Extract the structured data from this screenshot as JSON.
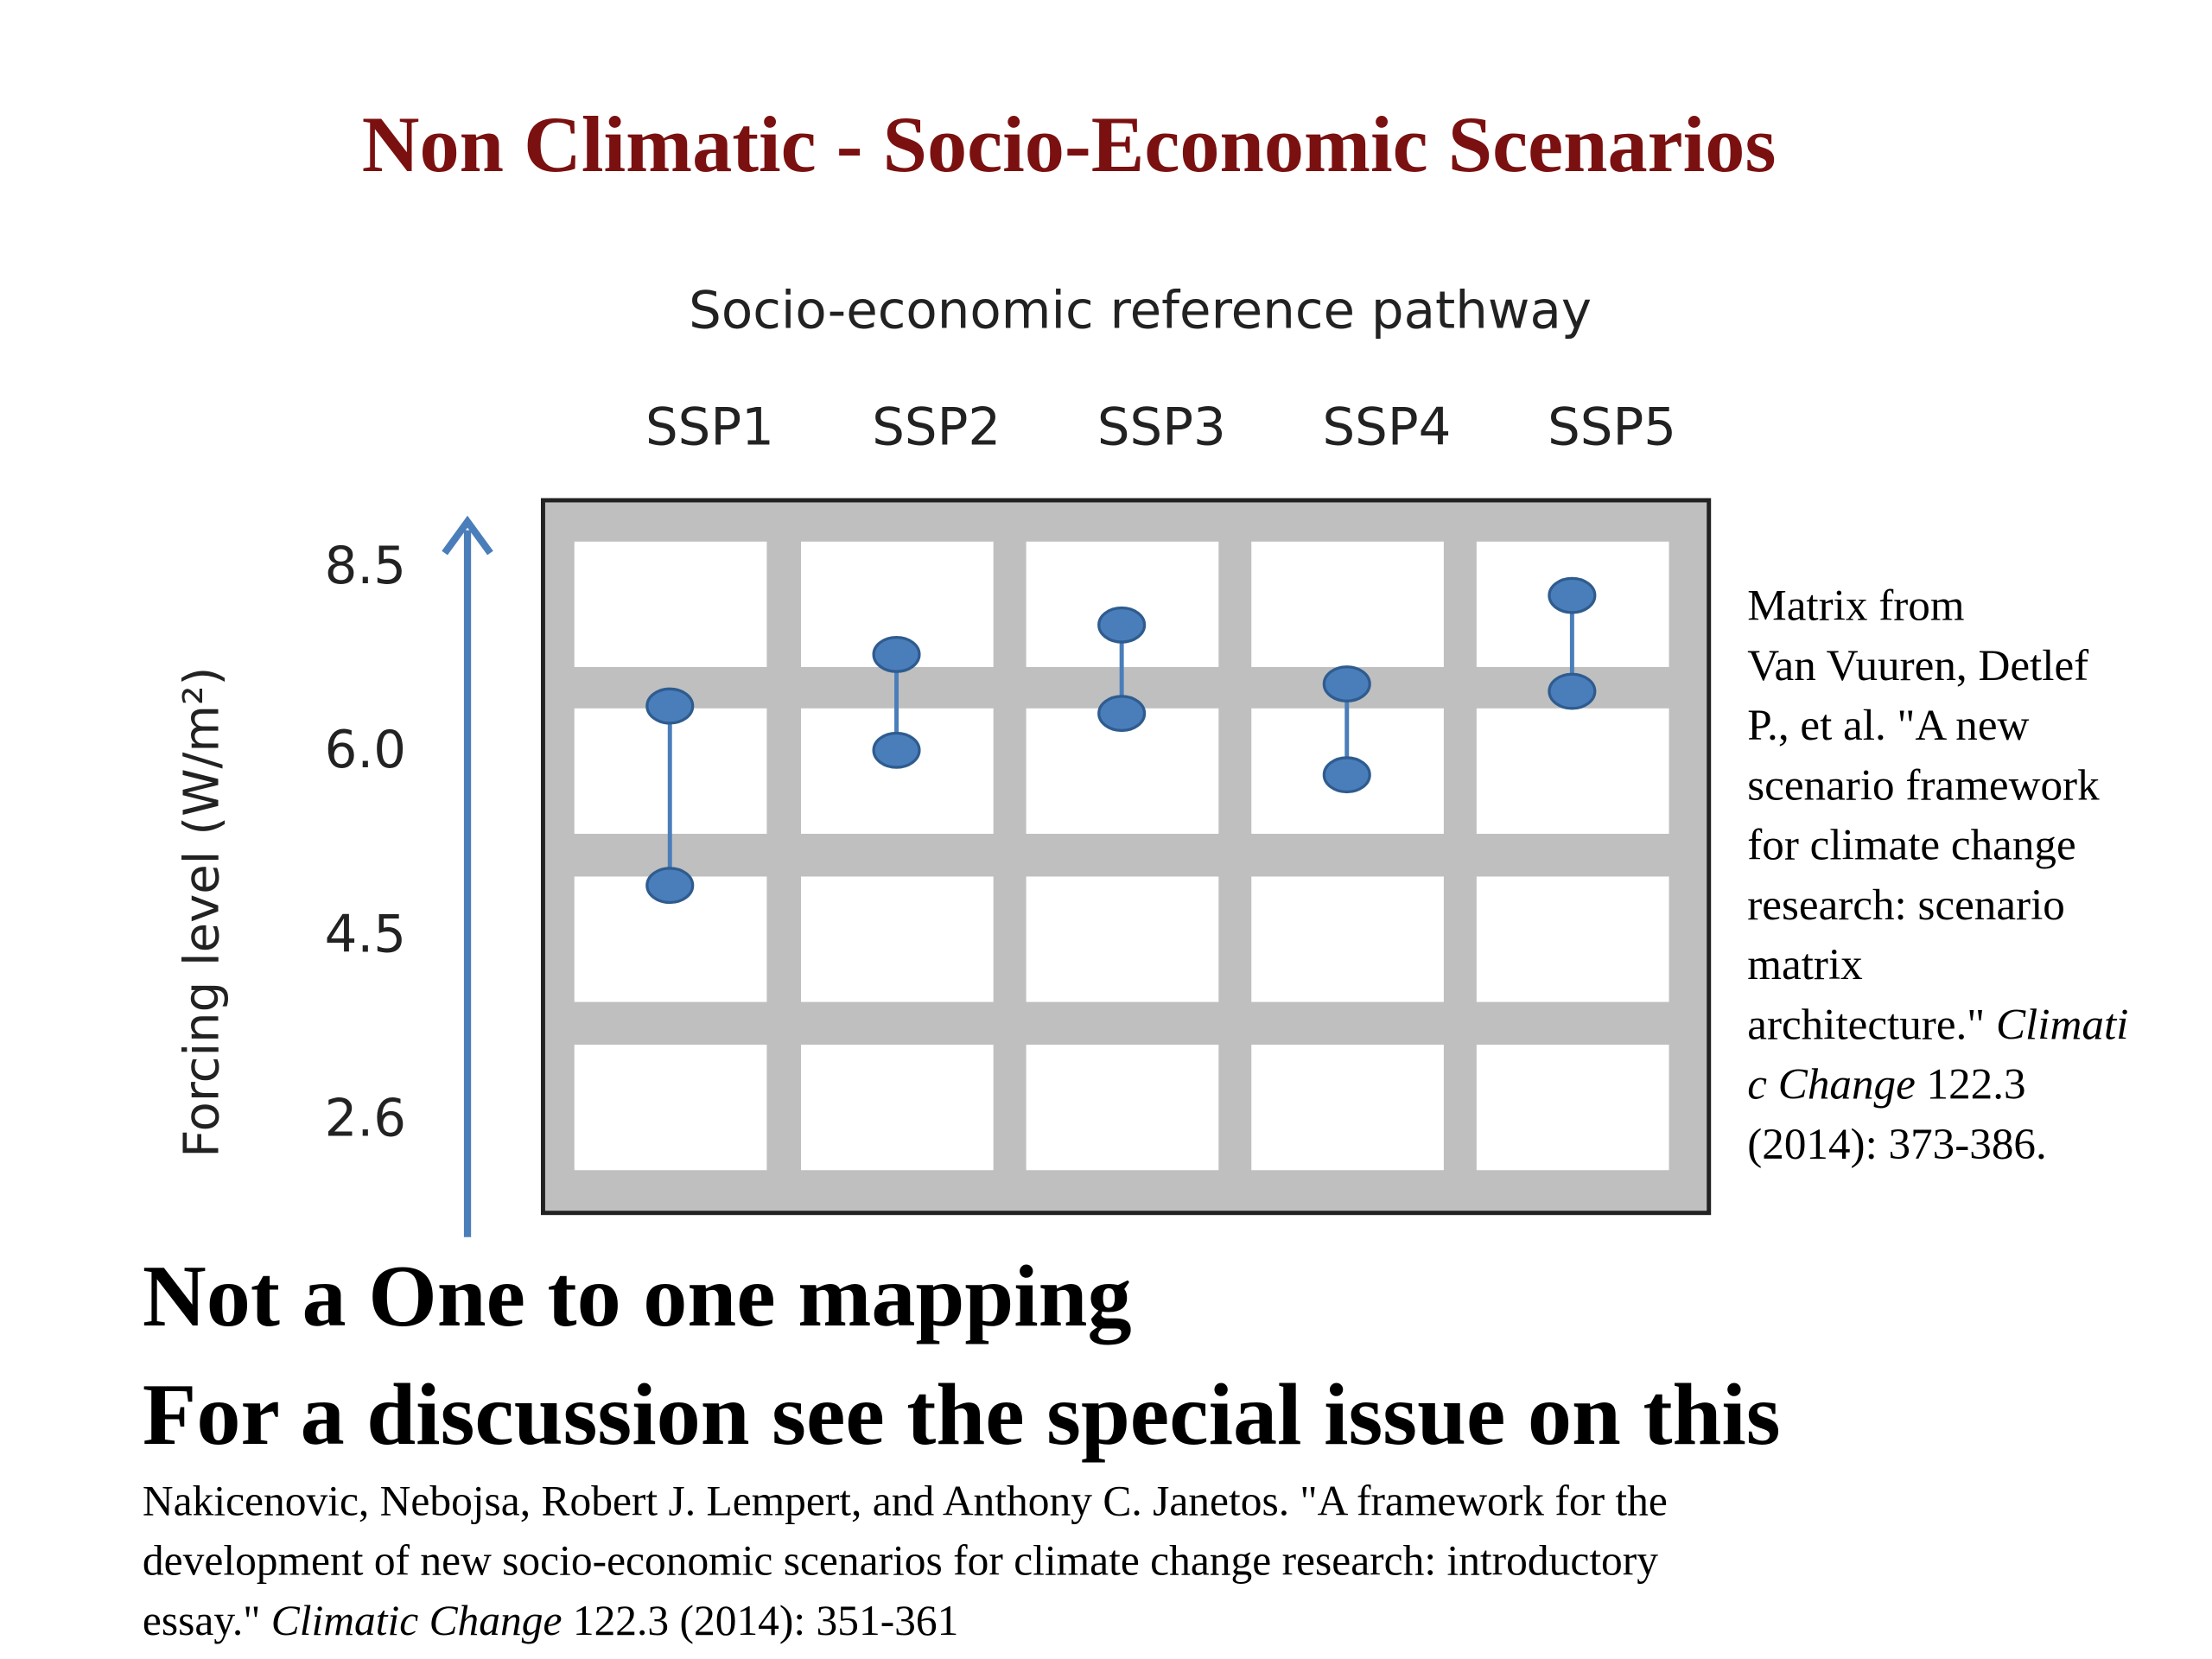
{
  "slide": {
    "title": "Non Climatic - Socio-Economic Scenarios",
    "headlines": [
      "Not a One to one mapping",
      "For a discussion see the special issue on this"
    ],
    "note_lines": [
      [
        {
          "text": "Matrix from",
          "italic": false
        }
      ],
      [
        {
          "text": "Van Vuuren, Detlef",
          "italic": false
        }
      ],
      [
        {
          "text": "P., et al. \"A new",
          "italic": false
        }
      ],
      [
        {
          "text": "scenario framework",
          "italic": false
        }
      ],
      [
        {
          "text": "for climate change",
          "italic": false
        }
      ],
      [
        {
          "text": "research: scenario",
          "italic": false
        }
      ],
      [
        {
          "text": "matrix",
          "italic": false
        }
      ],
      [
        {
          "text": "architecture.\" ",
          "italic": false
        },
        {
          "text": "Climati",
          "italic": true
        }
      ],
      [
        {
          "text": "c Change",
          "italic": true
        },
        {
          "text": " 122.3",
          "italic": false
        }
      ],
      [
        {
          "text": "(2014): 373-386.",
          "italic": false
        }
      ]
    ],
    "citation_lines": [
      [
        {
          "text": "Nakicenovic, Nebojsa, Robert J. Lempert, and Anthony C. Janetos. \"A framework for the",
          "italic": false
        }
      ],
      [
        {
          "text": "development of new socio-economic scenarios for climate change research: introductory",
          "italic": false
        }
      ],
      [
        {
          "text": "essay.\" ",
          "italic": false
        },
        {
          "text": "Climatic Change",
          "italic": true
        },
        {
          "text": " 122.3 (2014): 351-361",
          "italic": false
        }
      ]
    ]
  },
  "chart_data": {
    "type": "range",
    "x_label": "Socio-economic reference pathway",
    "y_label": "Forcing level (W/m²)",
    "categories": [
      "SSP1",
      "SSP2",
      "SSP3",
      "SSP4",
      "SSP5"
    ],
    "low": [
      4.9,
      6.0,
      6.5,
      5.8,
      6.8
    ],
    "high": [
      6.6,
      7.3,
      7.7,
      6.9,
      8.1
    ],
    "color": "#4a7ebb",
    "ylim": [
      2.6,
      8.5
    ],
    "yticks": [
      2.6,
      4.5,
      {
        "value": 6,
        "label": "6.0"
      },
      8.5
    ]
  }
}
